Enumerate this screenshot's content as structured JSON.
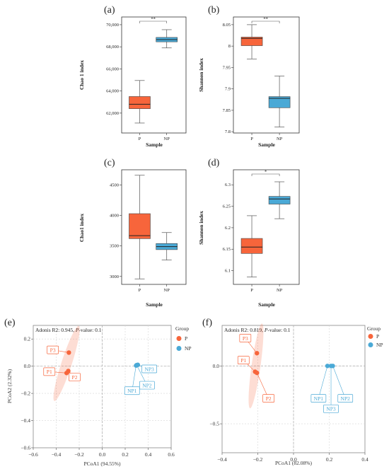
{
  "chart_data": [
    {
      "id": "a",
      "panel_label": "(a)",
      "type": "box",
      "xlabel": "Sample",
      "ylabel": "Chao 1 index",
      "categories": [
        "P",
        "NP"
      ],
      "ylim": [
        60200,
        70700
      ],
      "yticks": [
        62000,
        64000,
        66000,
        68000,
        70000
      ],
      "ytick_labels": [
        "62,000",
        "64,000",
        "66,000",
        "68,000",
        "70,000"
      ],
      "boxes": [
        {
          "name": "P",
          "min": 61100,
          "q1": 62400,
          "median": 62800,
          "q3": 63500,
          "max": 64950,
          "color": "#f7653b"
        },
        {
          "name": "NP",
          "min": 67900,
          "q1": 68450,
          "median": 68650,
          "q3": 68850,
          "max": 69550,
          "color": "#4aa9d6"
        }
      ],
      "significance": "**"
    },
    {
      "id": "b",
      "panel_label": "(b)",
      "type": "box",
      "xlabel": "Sample",
      "ylabel": "Shannon index",
      "categories": [
        "P",
        "NP"
      ],
      "ylim": [
        7.797,
        8.068
      ],
      "yticks": [
        7.8,
        7.85,
        7.9,
        7.95,
        8.0,
        8.05
      ],
      "ytick_labels": [
        "7.8",
        "7.85",
        "7.9",
        "7.95",
        "8",
        "8.05"
      ],
      "boxes": [
        {
          "name": "P",
          "min": 7.97,
          "q1": 8.001,
          "median": 8.018,
          "q3": 8.021,
          "max": 8.05,
          "color": "#f7653b"
        },
        {
          "name": "NP",
          "min": 7.811,
          "q1": 7.856,
          "median": 7.878,
          "q3": 7.882,
          "max": 7.93,
          "color": "#4aa9d6"
        }
      ],
      "significance": "**"
    },
    {
      "id": "c",
      "panel_label": "(c)",
      "type": "box",
      "xlabel": "Sample",
      "ylabel": "Chao1 index",
      "categories": [
        "P",
        "NP"
      ],
      "ylim": [
        2870,
        4750
      ],
      "yticks": [
        3000,
        3500,
        4000,
        4500
      ],
      "ytick_labels": [
        "3000",
        "3500",
        "4000",
        "4500"
      ],
      "boxes": [
        {
          "name": "P",
          "min": 2960,
          "q1": 3620,
          "median": 3670,
          "q3": 4030,
          "max": 4660,
          "color": "#f7653b"
        },
        {
          "name": "NP",
          "min": 3270,
          "q1": 3440,
          "median": 3490,
          "q3": 3540,
          "max": 3720,
          "color": "#4aa9d6"
        }
      ],
      "significance": ""
    },
    {
      "id": "d",
      "panel_label": "(d)",
      "type": "box",
      "xlabel": "Sample",
      "ylabel": "Shannon index",
      "categories": [
        "P",
        "NP"
      ],
      "ylim": [
        6.068,
        6.335
      ],
      "yticks": [
        6.1,
        6.15,
        6.2,
        6.25,
        6.3
      ],
      "ytick_labels": [
        "6.1",
        "6.15",
        "6.2",
        "6.25",
        "6.3"
      ],
      "boxes": [
        {
          "name": "P",
          "min": 6.085,
          "q1": 6.14,
          "median": 6.155,
          "q3": 6.175,
          "max": 6.228,
          "color": "#f7653b"
        },
        {
          "name": "NP",
          "min": 6.221,
          "q1": 6.255,
          "median": 6.267,
          "q3": 6.273,
          "max": 6.307,
          "color": "#4aa9d6"
        }
      ],
      "significance": "*"
    },
    {
      "id": "e",
      "panel_label": "(e)",
      "type": "scatter",
      "annotation": "Adonis R2: 0.945, P-value: 0.1",
      "annotation_prefix": "Adonis R2: 0.945, ",
      "annotation_italic": "P",
      "annotation_suffix": "-value: 0.1",
      "xlabel": "PCoA1 (94.55%)",
      "ylabel": "PCoA2 (2.32%)",
      "xlim": [
        -0.6,
        0.6
      ],
      "ylim": [
        -0.6,
        0.3
      ],
      "xticks": [
        -0.6,
        -0.4,
        -0.2,
        0.0,
        0.2,
        0.4,
        0.6
      ],
      "xtick_labels": [
        "−0.6",
        "−0.4",
        "−0.2",
        "0.0",
        "0.2",
        "0.4",
        "0.6"
      ],
      "yticks": [
        -0.6,
        -0.4,
        -0.2,
        0.0,
        0.2
      ],
      "ytick_labels": [
        "−0.6",
        "−0.4",
        "−0.2",
        "0.0",
        "0.2"
      ],
      "legend_title": "Group",
      "groups": [
        {
          "name": "P",
          "color": "#f7653b",
          "ellipse": {
            "cx": -0.31,
            "cy": 0.02,
            "rx": 0.045,
            "ry": 0.29,
            "angle_deg": 18
          }
        },
        {
          "name": "NP",
          "color": "#4aa9d6",
          "ellipse": null
        }
      ],
      "points": [
        {
          "label": "P3",
          "group": "P",
          "x": -0.29,
          "y": 0.1,
          "lx": -0.43,
          "ly": 0.12
        },
        {
          "label": "P1",
          "group": "P",
          "x": -0.31,
          "y": -0.05,
          "lx": -0.46,
          "ly": -0.04
        },
        {
          "label": "P2",
          "group": "P",
          "x": -0.295,
          "y": -0.035,
          "lx": -0.24,
          "ly": -0.08
        },
        {
          "label": "NP3",
          "group": "NP",
          "x": 0.31,
          "y": 0.01,
          "lx": 0.41,
          "ly": -0.02
        },
        {
          "label": "NP1",
          "group": "NP",
          "x": 0.295,
          "y": 0.005,
          "lx": 0.26,
          "ly": -0.18
        },
        {
          "label": "NP2",
          "group": "NP",
          "x": 0.3,
          "y": 0.008,
          "lx": 0.39,
          "ly": -0.14
        }
      ]
    },
    {
      "id": "f",
      "panel_label": "(f)",
      "type": "scatter",
      "annotation": "Adonis R2: 0.819, P-value: 0.1",
      "annotation_prefix": "Adonis R2: 0.819, ",
      "annotation_italic": "P",
      "annotation_suffix": "-value: 0.1",
      "xlabel": "PCoA1 (82.08%)",
      "ylabel": "",
      "xlim": [
        -0.4,
        0.4
      ],
      "ylim": [
        -0.75,
        0.35
      ],
      "xticks": [
        -0.4,
        -0.2,
        0.0,
        0.2,
        0.4
      ],
      "xtick_labels": [
        "−0.4",
        "−0.2",
        "0.0",
        "0.2",
        "0.4"
      ],
      "yticks": [
        -0.5,
        0.0
      ],
      "ytick_labels": [
        "−0.5",
        "0.0"
      ],
      "legend_title": "Group",
      "groups": [
        {
          "name": "P",
          "color": "#f7653b",
          "ellipse": {
            "cx": -0.21,
            "cy": 0.0,
            "rx": 0.025,
            "ry": 0.37,
            "angle_deg": 8
          }
        },
        {
          "name": "NP",
          "color": "#4aa9d6",
          "ellipse": null
        }
      ],
      "points": [
        {
          "label": "P3",
          "group": "P",
          "x": -0.205,
          "y": 0.11,
          "lx": -0.27,
          "ly": 0.24
        },
        {
          "label": "P1",
          "group": "P",
          "x": -0.215,
          "y": -0.05,
          "lx": -0.28,
          "ly": 0.05
        },
        {
          "label": "P2",
          "group": "P",
          "x": -0.205,
          "y": -0.06,
          "lx": -0.14,
          "ly": -0.28
        },
        {
          "label": "NP1",
          "group": "NP",
          "x": 0.19,
          "y": 0.0,
          "lx": 0.14,
          "ly": -0.28
        },
        {
          "label": "NP3",
          "group": "NP",
          "x": 0.21,
          "y": 0.0,
          "lx": 0.21,
          "ly": -0.37
        },
        {
          "label": "NP2",
          "group": "NP",
          "x": 0.22,
          "y": 0.0,
          "lx": 0.29,
          "ly": -0.28
        }
      ]
    }
  ]
}
